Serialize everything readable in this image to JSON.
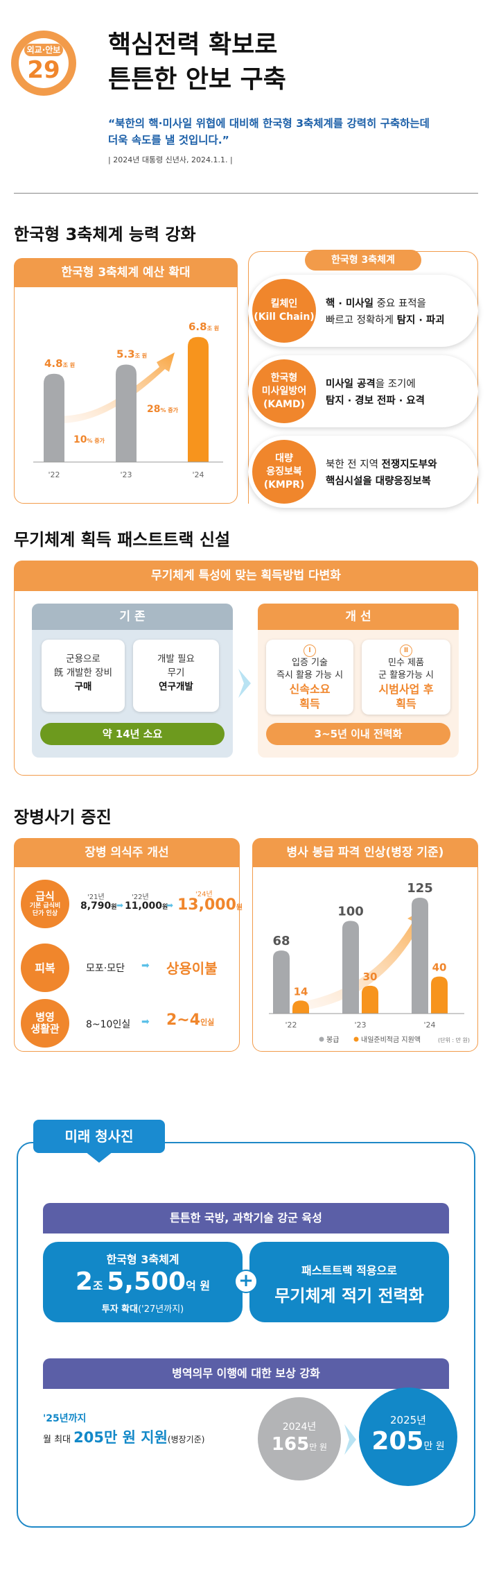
{
  "header": {
    "badge_category": "외교·안보",
    "badge_number": "29",
    "title_line1": "핵심전력 확보로",
    "title_line2": "튼튼한 안보 구축",
    "quote_line1": "“북한의  핵·미사일 위협에 대비해 한국형 3축체계를 강력히 구축하는데",
    "quote_line2": "더욱 속도를 낼 것입니다.”",
    "quote_source": "| 2024년 대통령 신년사, 2024.1.1. |"
  },
  "section1": {
    "title": "한국형 3축체계 능력 강화",
    "budget_panel_title": "한국형 3축체계 예산 확대",
    "chart_data": {
      "type": "bar",
      "categories": [
        "'22",
        "'23",
        "'24"
      ],
      "values": [
        4.8,
        5.3,
        6.8
      ],
      "value_labels": [
        "4.8",
        "5.3",
        "6.8"
      ],
      "unit": "조 원",
      "growth_labels": [
        {
          "value": "10",
          "unit": "% 증가"
        },
        {
          "value": "28",
          "unit": "% 증가"
        }
      ],
      "bar_colors": [
        "#a7a9ac",
        "#a7a9ac",
        "#f7941d"
      ],
      "ylim": [
        0,
        8
      ]
    },
    "three_axis": {
      "title": "한국형 3축체계",
      "items": [
        {
          "name_line1": "킬체인",
          "name_line2": "(Kill Chain)",
          "text_line1_bold": "핵 · 미사일",
          "text_line1_rest": " 중요 표적을",
          "text_line2_rest": "빠르고 정확하게 ",
          "text_line2_bold": "탐지 · 파괴"
        },
        {
          "name_line1": "한국형",
          "name_line2": "미사일방어",
          "name_line3": "(KAMD)",
          "text_line1_bold": "미사일 공격",
          "text_line1_rest": "을 조기에",
          "text_line2_bold": "탐지 · 경보 전파 · 요격"
        },
        {
          "name_line1": "대량",
          "name_line2": "응징보복",
          "name_line3": "(KMPR)",
          "text_line1_rest": "북한 전 지역 ",
          "text_line1_bold": "전쟁지도부와",
          "text_line2_bold": "핵심시설을 대량응징보복"
        }
      ]
    }
  },
  "section2": {
    "title": "무기체계 획득 패스트트랙 신설",
    "panel_title": "무기체계 특성에 맞는 획득방법 다변화",
    "old": {
      "label": "기 존",
      "card1_line1": "군용으로",
      "card1_line2": "旣 개발한 장비",
      "card1_bold": "구매",
      "card2_line1": "개발 필요",
      "card2_line2": "무기",
      "card2_bold": "연구개발",
      "duration": "약 14년 소요"
    },
    "new": {
      "label": "개 선",
      "card1_num": "Ⅰ",
      "card1_line1": "입증 기술",
      "card1_line2": "즉시 활용 가능 시",
      "card1_bold1": "신속소요",
      "card1_bold2": "획득",
      "card2_num": "Ⅱ",
      "card2_line1": "민수 제품",
      "card2_line2": "군 활용가능 시",
      "card2_bold1": "시범사업 후",
      "card2_bold2": "획득",
      "duration": "3~5년 이내 전력화"
    }
  },
  "section3": {
    "title": "장병사기 증진",
    "soldier_panel_title": "장병 의식주 개선",
    "meal": {
      "label": "급식",
      "sub_line1": "기본 급식비",
      "sub_line2": "단가 인상",
      "y1": "'21년",
      "v1": "8,790",
      "u1": "원",
      "y2": "'22년",
      "v2": "11,000",
      "u2": "원",
      "y3": "'24년",
      "v3": "13,000",
      "u3": "원"
    },
    "clothing": {
      "label": "피복",
      "from": "모포·모단",
      "to": "상용이불"
    },
    "barracks": {
      "label_line1": "병영",
      "label_line2": "생활관",
      "from": "8~10인실",
      "to": "2~4",
      "to_unit": "인실"
    },
    "pay_panel_title": "병사 봉급 파격 인상(병장 기준)",
    "chart_data": {
      "type": "bar",
      "categories": [
        "'22",
        "'23",
        "'24"
      ],
      "series": [
        {
          "name": "봉급",
          "values": [
            68,
            100,
            125
          ],
          "color": "#a7a9ac"
        },
        {
          "name": "내일준비적금 지원액",
          "values": [
            14,
            30,
            40
          ],
          "color": "#f7941d"
        }
      ],
      "unit_note": "(단위 : 만 원)",
      "ylim": [
        0,
        140
      ]
    }
  },
  "future": {
    "tag": "미래 청사진",
    "block1_title": "튼튼한 국방, 과학기술 강군 육성",
    "box1_line1": "한국형 3축체계",
    "box1_big1": "2",
    "box1_small1": "조",
    "box1_big2": "5,500",
    "box1_small2": "억 원",
    "box1_line3_bold": "투자 확대",
    "box1_line3_rest": "('27년까지)",
    "plus": "+",
    "box2_line1": "패스트트랙 적용으로",
    "box2_line2": "무기체계 적기 전력화",
    "block2_title": "병역의무 이행에 대한 보상 강화",
    "support_line1": "'25년까지",
    "support_pre": "월 최대 ",
    "support_bold": "205만 원 지원",
    "support_post": "(병장기준)",
    "c1_year": "2024년",
    "c1_value": "165",
    "c1_unit": "만 원",
    "c2_year": "2025년",
    "c2_value": "205",
    "c2_unit": "만 원"
  }
}
